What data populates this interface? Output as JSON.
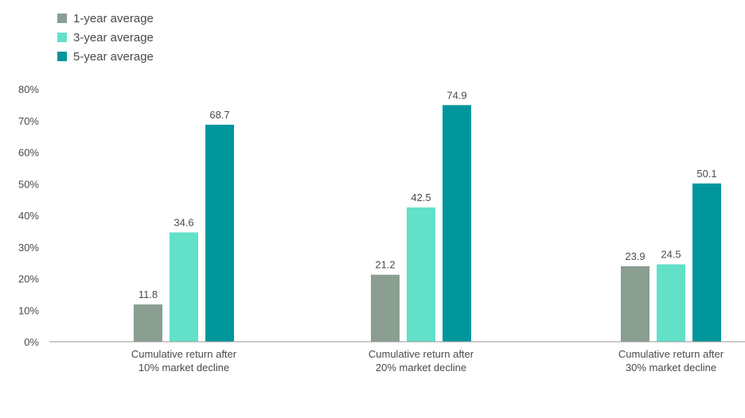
{
  "chart_data": {
    "type": "bar",
    "title": "",
    "xlabel": "",
    "ylabel": "",
    "categories": [
      [
        "Cumulative return after",
        "10% market decline"
      ],
      [
        "Cumulative return after",
        "20% market decline"
      ],
      [
        "Cumulative return after",
        "30% market decline"
      ]
    ],
    "series": [
      {
        "name": "1-year average",
        "color": "#8a9e92",
        "values": [
          11.8,
          21.2,
          23.9
        ]
      },
      {
        "name": "3-year average",
        "color": "#62e0c8",
        "values": [
          34.6,
          42.5,
          24.5
        ]
      },
      {
        "name": "5-year average",
        "color": "#00969c",
        "values": [
          68.7,
          74.9,
          50.1
        ]
      }
    ],
    "value_labels": [
      [
        "11.8",
        "21.2",
        "23.9"
      ],
      [
        "34.6",
        "42.5",
        "24.5"
      ],
      [
        "68.7",
        "74.9",
        "50.1"
      ]
    ],
    "ylim": [
      0,
      80
    ],
    "yticks": [
      0,
      10,
      20,
      30,
      40,
      50,
      60,
      70,
      80
    ],
    "ytick_labels": [
      "0%",
      "10%",
      "20%",
      "30%",
      "40%",
      "50%",
      "60%",
      "70%",
      "80%"
    ],
    "grid": false,
    "legend_position": "top-left"
  }
}
